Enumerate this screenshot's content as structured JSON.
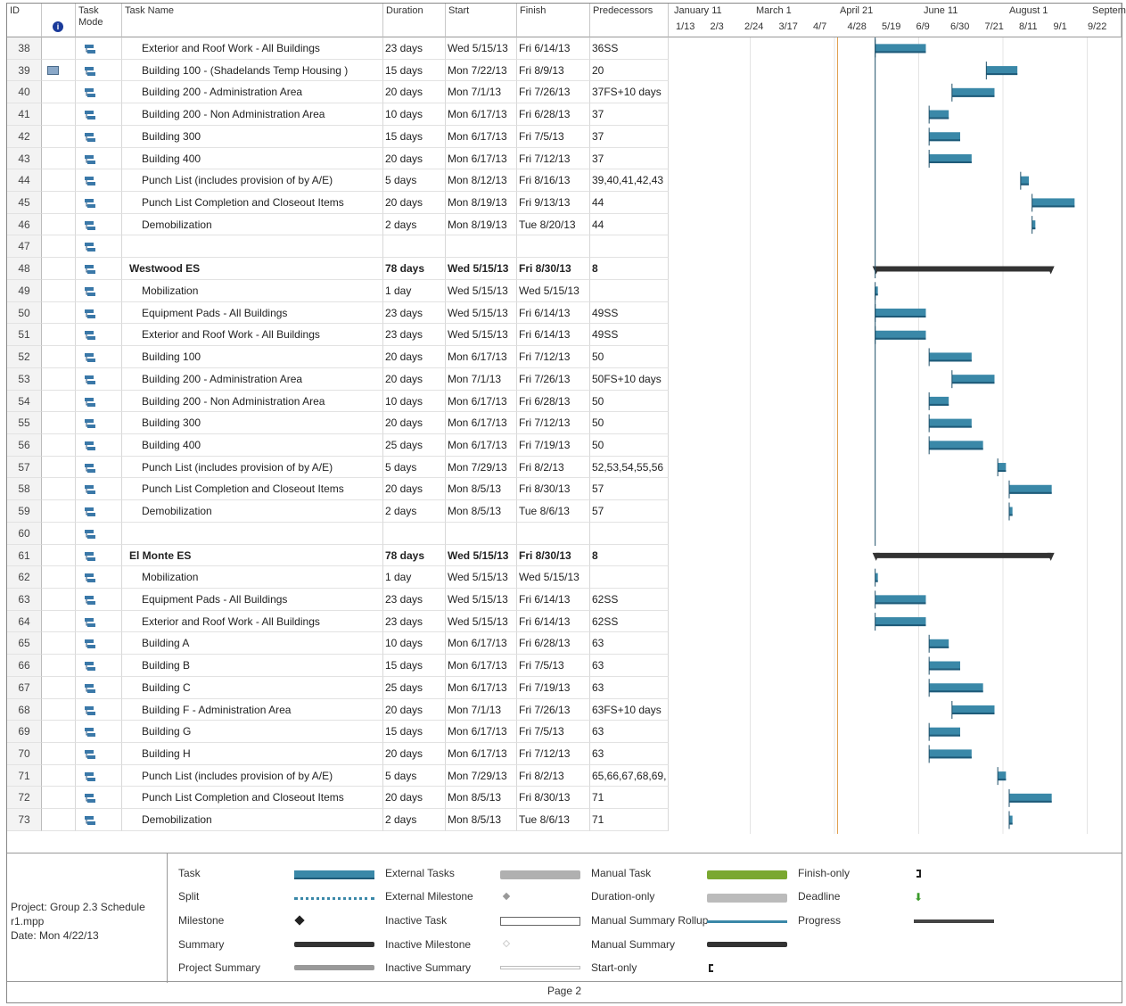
{
  "headers": {
    "id": "ID",
    "mode": "Task Mode",
    "name": "Task Name",
    "duration": "Duration",
    "start": "Start",
    "finish": "Finish",
    "predecessors": "Predecessors"
  },
  "timescale": {
    "top": [
      "January 11",
      "March 1",
      "April 21",
      "June 11",
      "August 1",
      "Septem"
    ],
    "bottom": [
      "1/13",
      "2/3",
      "2/24",
      "3/17",
      "4/7",
      "4/28",
      "5/19",
      "6/9",
      "6/30",
      "7/21",
      "8/11",
      "9/1",
      "9/22"
    ]
  },
  "tasks": [
    {
      "id": "38",
      "name": "Exterior and Roof Work - All Buildings",
      "duration": "23 days",
      "start": "Wed 5/15/13",
      "finish": "Fri 6/14/13",
      "pred": "36SS"
    },
    {
      "id": "39",
      "name": "Building 100 - (Shadelands Temp Housing )",
      "duration": "15 days",
      "start": "Mon 7/22/13",
      "finish": "Fri 8/9/13",
      "pred": "20",
      "calendar": true
    },
    {
      "id": "40",
      "name": "Building 200 - Administration Area",
      "duration": "20 days",
      "start": "Mon 7/1/13",
      "finish": "Fri 7/26/13",
      "pred": "37FS+10 days"
    },
    {
      "id": "41",
      "name": "Building 200 - Non Administration Area",
      "duration": "10 days",
      "start": "Mon 6/17/13",
      "finish": "Fri 6/28/13",
      "pred": "37"
    },
    {
      "id": "42",
      "name": "Building 300",
      "duration": "15 days",
      "start": "Mon 6/17/13",
      "finish": "Fri 7/5/13",
      "pred": "37"
    },
    {
      "id": "43",
      "name": "Building 400",
      "duration": "20 days",
      "start": "Mon 6/17/13",
      "finish": "Fri 7/12/13",
      "pred": "37"
    },
    {
      "id": "44",
      "name": "Punch List (includes provision of by A/E)",
      "duration": "5 days",
      "start": "Mon 8/12/13",
      "finish": "Fri 8/16/13",
      "pred": "39,40,41,42,43"
    },
    {
      "id": "45",
      "name": "Punch List Completion and Closeout Items",
      "duration": "20 days",
      "start": "Mon 8/19/13",
      "finish": "Fri 9/13/13",
      "pred": "44"
    },
    {
      "id": "46",
      "name": "Demobilization",
      "duration": "2 days",
      "start": "Mon 8/19/13",
      "finish": "Tue 8/20/13",
      "pred": "44"
    },
    {
      "id": "47",
      "name": "",
      "duration": "",
      "start": "",
      "finish": "",
      "pred": ""
    },
    {
      "id": "48",
      "name": "Westwood ES",
      "duration": "78 days",
      "start": "Wed 5/15/13",
      "finish": "Fri 8/30/13",
      "pred": "8",
      "summary": true
    },
    {
      "id": "49",
      "name": "Mobilization",
      "duration": "1 day",
      "start": "Wed 5/15/13",
      "finish": "Wed 5/15/13",
      "pred": ""
    },
    {
      "id": "50",
      "name": "Equipment Pads - All Buildings",
      "duration": "23 days",
      "start": "Wed 5/15/13",
      "finish": "Fri 6/14/13",
      "pred": "49SS"
    },
    {
      "id": "51",
      "name": "Exterior and Roof Work - All Buildings",
      "duration": "23 days",
      "start": "Wed 5/15/13",
      "finish": "Fri 6/14/13",
      "pred": "49SS"
    },
    {
      "id": "52",
      "name": "Building 100",
      "duration": "20 days",
      "start": "Mon 6/17/13",
      "finish": "Fri 7/12/13",
      "pred": "50"
    },
    {
      "id": "53",
      "name": "Building 200 - Administration Area",
      "duration": "20 days",
      "start": "Mon 7/1/13",
      "finish": "Fri 7/26/13",
      "pred": "50FS+10 days"
    },
    {
      "id": "54",
      "name": "Building 200 - Non Administration Area",
      "duration": "10 days",
      "start": "Mon 6/17/13",
      "finish": "Fri 6/28/13",
      "pred": "50"
    },
    {
      "id": "55",
      "name": "Building 300",
      "duration": "20 days",
      "start": "Mon 6/17/13",
      "finish": "Fri 7/12/13",
      "pred": "50"
    },
    {
      "id": "56",
      "name": "Building 400",
      "duration": "25 days",
      "start": "Mon 6/17/13",
      "finish": "Fri 7/19/13",
      "pred": "50"
    },
    {
      "id": "57",
      "name": "Punch List (includes provision of by A/E)",
      "duration": "5 days",
      "start": "Mon 7/29/13",
      "finish": "Fri 8/2/13",
      "pred": "52,53,54,55,56"
    },
    {
      "id": "58",
      "name": "Punch List Completion and Closeout Items",
      "duration": "20 days",
      "start": "Mon 8/5/13",
      "finish": "Fri 8/30/13",
      "pred": "57"
    },
    {
      "id": "59",
      "name": "Demobilization",
      "duration": "2 days",
      "start": "Mon 8/5/13",
      "finish": "Tue 8/6/13",
      "pred": "57"
    },
    {
      "id": "60",
      "name": "",
      "duration": "",
      "start": "",
      "finish": "",
      "pred": ""
    },
    {
      "id": "61",
      "name": "El Monte ES",
      "duration": "78 days",
      "start": "Wed 5/15/13",
      "finish": "Fri 8/30/13",
      "pred": "8",
      "summary": true
    },
    {
      "id": "62",
      "name": "Mobilization",
      "duration": "1 day",
      "start": "Wed 5/15/13",
      "finish": "Wed 5/15/13",
      "pred": ""
    },
    {
      "id": "63",
      "name": "Equipment Pads - All Buildings",
      "duration": "23 days",
      "start": "Wed 5/15/13",
      "finish": "Fri 6/14/13",
      "pred": "62SS"
    },
    {
      "id": "64",
      "name": "Exterior and Roof Work - All Buildings",
      "duration": "23 days",
      "start": "Wed 5/15/13",
      "finish": "Fri 6/14/13",
      "pred": "62SS"
    },
    {
      "id": "65",
      "name": "Building A",
      "duration": "10 days",
      "start": "Mon 6/17/13",
      "finish": "Fri 6/28/13",
      "pred": "63"
    },
    {
      "id": "66",
      "name": "Building B",
      "duration": "15 days",
      "start": "Mon 6/17/13",
      "finish": "Fri 7/5/13",
      "pred": "63"
    },
    {
      "id": "67",
      "name": "Building C",
      "duration": "25 days",
      "start": "Mon 6/17/13",
      "finish": "Fri 7/19/13",
      "pred": "63"
    },
    {
      "id": "68",
      "name": "Building F - Administration Area",
      "duration": "20 days",
      "start": "Mon 7/1/13",
      "finish": "Fri 7/26/13",
      "pred": "63FS+10 days"
    },
    {
      "id": "69",
      "name": "Building G",
      "duration": "15 days",
      "start": "Mon 6/17/13",
      "finish": "Fri 7/5/13",
      "pred": "63"
    },
    {
      "id": "70",
      "name": "Building H",
      "duration": "20 days",
      "start": "Mon 6/17/13",
      "finish": "Fri 7/12/13",
      "pred": "63"
    },
    {
      "id": "71",
      "name": "Punch List (includes provision of by A/E)",
      "duration": "5 days",
      "start": "Mon 7/29/13",
      "finish": "Fri 8/2/13",
      "pred": "65,66,67,68,69,"
    },
    {
      "id": "72",
      "name": "Punch List Completion and Closeout Items",
      "duration": "20 days",
      "start": "Mon 8/5/13",
      "finish": "Fri 8/30/13",
      "pred": "71"
    },
    {
      "id": "73",
      "name": "Demobilization",
      "duration": "2 days",
      "start": "Mon 8/5/13",
      "finish": "Tue 8/6/13",
      "pred": "71"
    }
  ],
  "legend": {
    "project": "Project: Group 2.3 Schedule r1.mpp",
    "date": "Date: Mon 4/22/13",
    "col1": [
      "Task",
      "Split",
      "Milestone",
      "Summary",
      "Project Summary"
    ],
    "col2": [
      "External Tasks",
      "External Milestone",
      "Inactive Task",
      "Inactive Milestone",
      "Inactive Summary"
    ],
    "col3": [
      "Manual Task",
      "Duration-only",
      "Manual Summary Rollup",
      "Manual Summary",
      "Start-only"
    ],
    "col4": [
      "Finish-only",
      "Deadline",
      "Progress"
    ]
  },
  "footer": "Page 2",
  "colors": {
    "task": "#3a88a8",
    "summary": "#333333",
    "status_line": "#e0a050"
  }
}
